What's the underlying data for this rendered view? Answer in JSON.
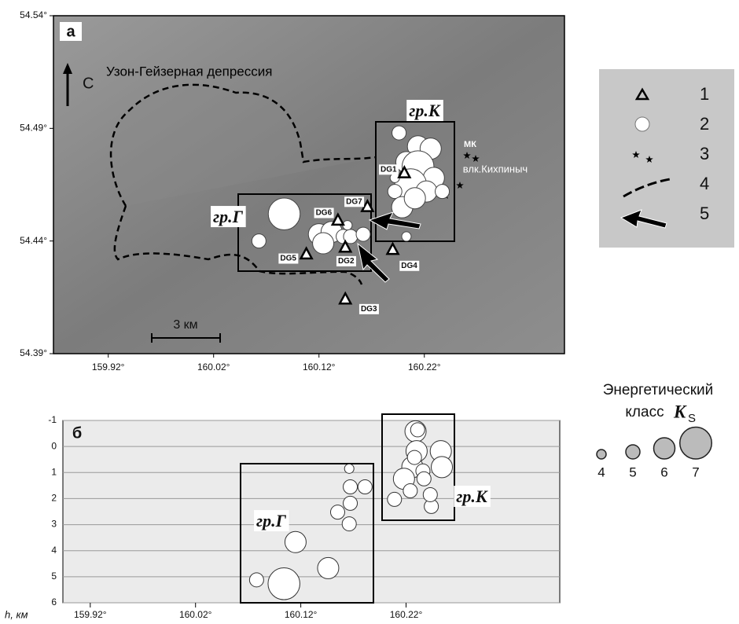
{
  "map": {
    "label": "а",
    "title": "Узон-Гейзерная депрессия",
    "north": "С",
    "scale": "3 км",
    "xlim": [
      159.868,
      160.353
    ],
    "ylim": [
      54.39,
      54.54
    ],
    "xticks": [
      {
        "value": 159.92,
        "label": "159.92°"
      },
      {
        "value": 160.02,
        "label": "160.02°"
      },
      {
        "value": 160.12,
        "label": "160.12°"
      },
      {
        "value": 160.22,
        "label": "160.22°"
      }
    ],
    "yticks": [
      {
        "value": 54.39,
        "label": "54.39°"
      },
      {
        "value": 54.44,
        "label": "54.44°"
      },
      {
        "value": 54.49,
        "label": "54.49°"
      },
      {
        "value": 54.54,
        "label": "54.54°"
      }
    ],
    "group_labels": [
      "гр.Г",
      "гр.К"
    ],
    "volcano_labels": [
      "МК",
      "влк.Кихпиныч"
    ],
    "stations": {
      "names": [
        "DG1",
        "DG2",
        "DG3",
        "DG4",
        "DG5",
        "DG6",
        "DG7"
      ],
      "lon": [
        160.201,
        160.145,
        160.145,
        160.19,
        160.108,
        160.138,
        160.166
      ],
      "lat": [
        54.47,
        54.437,
        54.414,
        54.436,
        54.434,
        54.449,
        54.455
      ]
    },
    "events": {
      "lon": [
        160.087,
        160.063,
        160.12,
        160.132,
        160.143,
        160.15,
        160.162,
        160.147,
        160.124,
        160.214,
        160.226,
        160.203,
        160.214,
        160.229,
        160.207,
        160.222,
        160.196,
        160.192,
        160.199,
        160.211,
        160.203,
        160.237,
        160.192
      ],
      "lat": [
        54.452,
        54.44,
        54.443,
        54.444,
        54.442,
        54.442,
        54.443,
        54.447,
        54.439,
        54.482,
        54.481,
        54.475,
        54.473,
        54.468,
        54.465,
        54.462,
        54.488,
        54.462,
        54.455,
        54.459,
        54.442,
        54.462,
        54.468
      ],
      "class": [
        7,
        5,
        6,
        6,
        5,
        5,
        5,
        4,
        6,
        6,
        6,
        6,
        7,
        6,
        7,
        6,
        5,
        5,
        6,
        6,
        4,
        5,
        4
      ]
    }
  },
  "legend": {
    "items": [
      "1",
      "2",
      "3",
      "4",
      "5"
    ],
    "class_title": [
      "Энергетический",
      "класс"
    ],
    "class_symbol": "K",
    "class_subscript": "S",
    "classes": [
      4,
      5,
      6,
      7
    ]
  },
  "section": {
    "label": "б",
    "y_label": "h, км",
    "xlim": [
      159.894,
      160.366
    ],
    "ylim": [
      -1,
      6
    ],
    "xticks": [
      {
        "value": 159.92,
        "label": "159.92°"
      },
      {
        "value": 160.02,
        "label": "160.02°"
      },
      {
        "value": 160.12,
        "label": "160.12°"
      },
      {
        "value": 160.22,
        "label": "160.22°"
      }
    ],
    "yticks": [
      -1,
      0,
      1,
      2,
      3,
      4,
      5,
      6
    ],
    "group_labels": [
      "гр.Г",
      "гр.К"
    ],
    "events": {
      "lon": [
        160.078,
        160.104,
        160.146,
        160.115,
        160.166,
        160.155,
        160.167,
        160.167,
        160.181,
        160.166,
        160.209,
        160.229,
        160.23,
        160.226,
        160.218,
        160.224,
        160.244,
        160.243,
        160.253,
        160.254,
        160.236,
        160.231,
        160.237,
        160.228
      ],
      "h": [
        5.12,
        5.27,
        4.67,
        3.67,
        2.97,
        2.52,
        2.18,
        1.55,
        1.55,
        0.85,
        2.03,
        -0.58,
        0.18,
        0.79,
        1.24,
        1.7,
        2.3,
        1.85,
        0.18,
        0.79,
        0.94,
        -0.64,
        1.24,
        0.42
      ],
      "class": [
        5,
        7,
        6,
        6,
        5,
        5,
        5,
        5,
        5,
        4,
        5,
        6,
        6,
        6,
        6,
        5,
        5,
        5,
        6,
        6,
        5,
        5,
        5,
        5
      ]
    }
  }
}
